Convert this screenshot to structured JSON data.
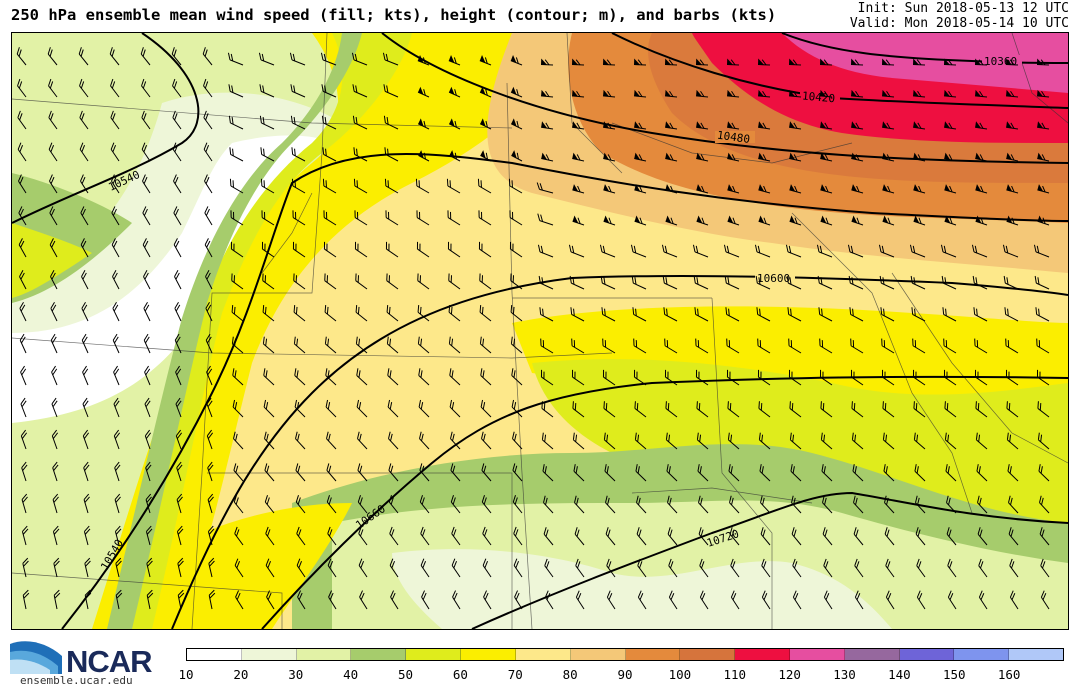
{
  "header": {
    "title": "250 hPa ensemble mean wind speed (fill; kts), height (contour; m), and barbs (kts)",
    "init": "Init: Sun 2018-05-13 12 UTC",
    "valid": "Valid: Mon 2018-05-14 10 UTC"
  },
  "contour_labels": [
    "10360",
    "10420",
    "10480",
    "10540",
    "10600",
    "10660",
    "10720",
    "10540"
  ],
  "colorbar": {
    "ticks": [
      "10",
      "20",
      "30",
      "40",
      "50",
      "60",
      "70",
      "80",
      "90",
      "100",
      "110",
      "120",
      "130",
      "140",
      "150",
      "160"
    ],
    "colors": [
      "#ffffff",
      "#eef6d8",
      "#e2f2a6",
      "#a6cc6c",
      "#dfec1c",
      "#fbee00",
      "#fde88a",
      "#f4c878",
      "#e48a3c",
      "#d6743c",
      "#ee0f40",
      "#e64ea0",
      "#96689e",
      "#6e64d8",
      "#7e94ee",
      "#b0c8f8"
    ]
  },
  "logo": {
    "name": "NCAR",
    "url": "ensemble.ucar.edu"
  }
}
